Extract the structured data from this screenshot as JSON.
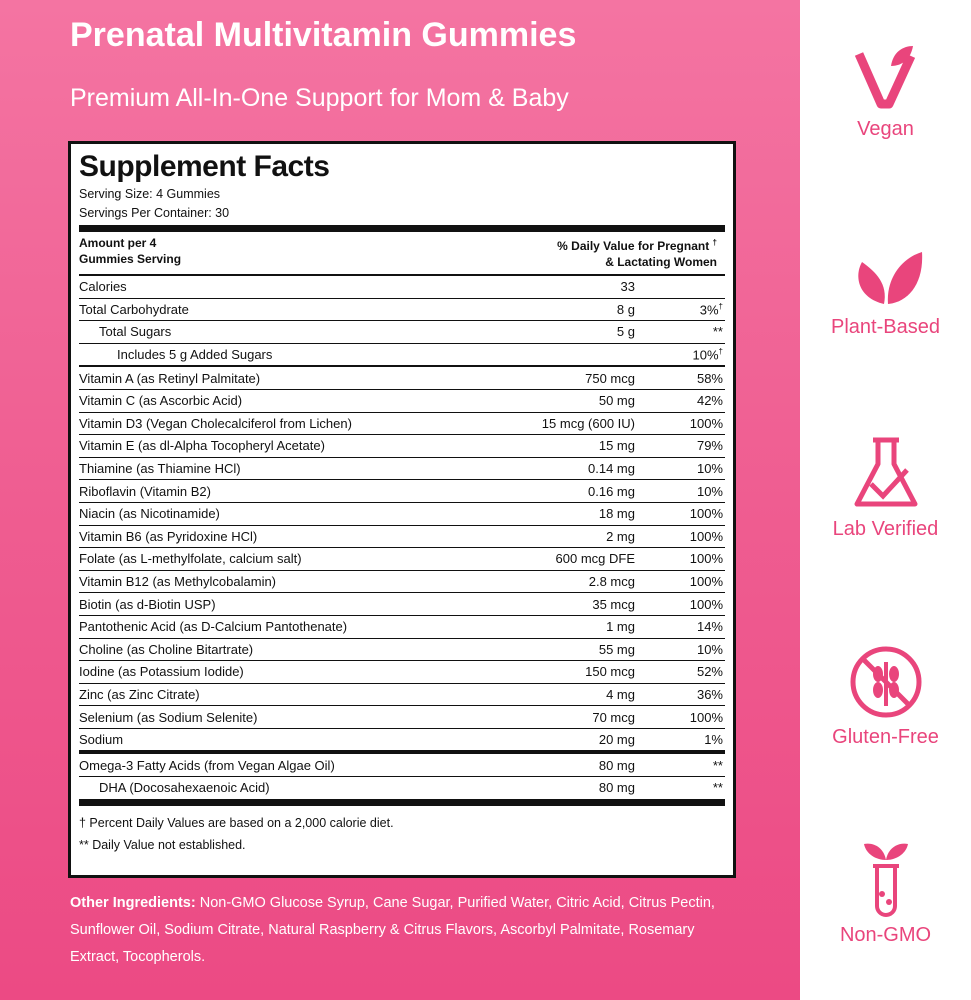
{
  "header": {
    "title": "Prenatal Multivitamin Gummies",
    "subtitle": "Premium All-In-One Support for Mom & Baby"
  },
  "facts": {
    "heading": "Supplement Facts",
    "serving_size": "Serving Size:  4 Gummies",
    "servings_per_container": "Servings Per Container:  30",
    "column_left": [
      "Amount per 4",
      "Gummies Serving"
    ],
    "column_right": [
      "% Daily Value for Pregnant",
      "& Lactating Women"
    ],
    "column_right_mark": "†",
    "rows": [
      {
        "name": "Calories",
        "amount": "33"
      },
      {
        "name": "Total Carbohydrate",
        "amount": "8 g",
        "dv": "3%",
        "dv_mark": "†"
      },
      {
        "name": "Total Sugars",
        "amount": "5 g",
        "dv": "**"
      },
      {
        "name": "Includes 5 g Added Sugars",
        "dv": "10%",
        "dv_mark": "†"
      },
      {
        "name": "Vitamin A (as Retinyl Palmitate)",
        "amount": "750  mcg",
        "dv": "58%"
      },
      {
        "name": "Vitamin C (as Ascorbic Acid)",
        "amount": "50 mg",
        "dv": "42%"
      },
      {
        "name": "Vitamin D3 (Vegan Cholecalciferol from Lichen)",
        "amount": "15 mcg (600 IU)",
        "dv": "100%"
      },
      {
        "name": "Vitamin E (as dl-Alpha Tocopheryl Acetate)",
        "amount": "15 mg",
        "dv": "79%"
      },
      {
        "name": "Thiamine (as Thiamine HCl)",
        "amount": "0.14 mg",
        "dv": "10%"
      },
      {
        "name": "Riboflavin (Vitamin B2)",
        "amount": "0.16 mg",
        "dv": "10%"
      },
      {
        "name": "Niacin (as Nicotinamide)",
        "amount": "18 mg",
        "dv": "100%"
      },
      {
        "name": "Vitamin B6 (as Pyridoxine HCl)",
        "amount": "2 mg",
        "dv": "100%"
      },
      {
        "name": "Folate (as L-methylfolate, calcium salt)",
        "amount": "600 mcg DFE",
        "dv": "100%"
      },
      {
        "name": "Vitamin B12 (as Methylcobalamin)",
        "amount": "2.8 mcg",
        "dv": "100%"
      },
      {
        "name": "Biotin (as d-Biotin USP)",
        "amount": "35 mcg",
        "dv": "100%"
      },
      {
        "name": "Pantothenic Acid (as D-Calcium Pantothenate)",
        "amount": "1 mg",
        "dv": "14%"
      },
      {
        "name": "Choline (as Choline Bitartrate)",
        "amount": "55 mg",
        "dv": "10%"
      },
      {
        "name": "Iodine (as Potassium Iodide)",
        "amount": "150 mcg",
        "dv": "52%"
      },
      {
        "name": "Zinc (as Zinc Citrate)",
        "amount": "4 mg",
        "dv": "36%"
      },
      {
        "name": "Selenium (as Sodium Selenite)",
        "amount": "70 mcg",
        "dv": "100%"
      },
      {
        "name": "Sodium",
        "amount": "20 mg",
        "dv": "1%"
      },
      {
        "name": "Omega-3 Fatty Acids (from Vegan Algae Oil)",
        "amount": "80 mg",
        "dv": "**"
      },
      {
        "name": "DHA (Docosahexaenoic Acid)",
        "amount": "80 mg",
        "dv": "**"
      }
    ],
    "footnotes": [
      "† Percent Daily Values are based on a 2,000 calorie diet.",
      "** Daily Value not established."
    ]
  },
  "other_ingredients": {
    "label": "Other Ingredients:",
    "text": "Non-GMO Glucose Syrup, Cane Sugar, Purified Water, Citric Acid, Citrus Pectin, Sunflower Oil, Sodium Citrate, Natural Raspberry & Citrus Flavors, Ascorbyl Palmitate, Rosemary Extract, Tocopherols."
  },
  "badges": [
    "Vegan",
    "Plant-Based",
    "Lab Verified",
    "Gluten-Free",
    "Non-GMO"
  ]
}
